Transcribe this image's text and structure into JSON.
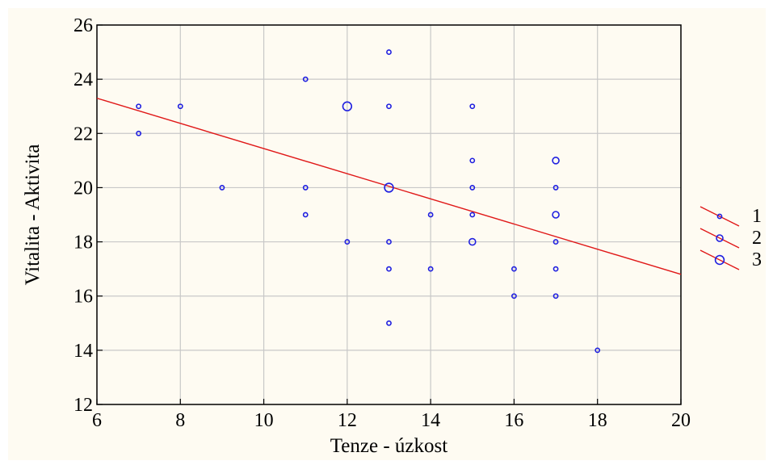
{
  "chart_data": {
    "type": "scatter",
    "title": "",
    "xlabel": "Tenze - úzkost",
    "ylabel": "Vitalita - Aktivita",
    "xlim": [
      6,
      20
    ],
    "ylim": [
      12,
      26
    ],
    "xticks": [
      6,
      8,
      10,
      12,
      14,
      16,
      18,
      20
    ],
    "yticks": [
      12,
      14,
      16,
      18,
      20,
      22,
      24,
      26
    ],
    "grid": true,
    "legend_position": "right",
    "legend": [
      {
        "label": "1",
        "count": 1
      },
      {
        "label": "2",
        "count": 2
      },
      {
        "label": "3",
        "count": 3
      }
    ],
    "points": [
      {
        "x": 7,
        "y": 23,
        "count": 1
      },
      {
        "x": 7,
        "y": 22,
        "count": 1
      },
      {
        "x": 8,
        "y": 23,
        "count": 1
      },
      {
        "x": 9,
        "y": 20,
        "count": 1
      },
      {
        "x": 11,
        "y": 24,
        "count": 1
      },
      {
        "x": 11,
        "y": 20,
        "count": 1
      },
      {
        "x": 11,
        "y": 19,
        "count": 1
      },
      {
        "x": 12,
        "y": 23,
        "count": 3
      },
      {
        "x": 12,
        "y": 18,
        "count": 1
      },
      {
        "x": 13,
        "y": 25,
        "count": 1
      },
      {
        "x": 13,
        "y": 23,
        "count": 1
      },
      {
        "x": 13,
        "y": 20,
        "count": 3
      },
      {
        "x": 13,
        "y": 18,
        "count": 1
      },
      {
        "x": 13,
        "y": 17,
        "count": 1
      },
      {
        "x": 13,
        "y": 15,
        "count": 1
      },
      {
        "x": 14,
        "y": 19,
        "count": 1
      },
      {
        "x": 14,
        "y": 17,
        "count": 1
      },
      {
        "x": 15,
        "y": 23,
        "count": 1
      },
      {
        "x": 15,
        "y": 21,
        "count": 1
      },
      {
        "x": 15,
        "y": 20,
        "count": 1
      },
      {
        "x": 15,
        "y": 19,
        "count": 1
      },
      {
        "x": 15,
        "y": 18,
        "count": 2
      },
      {
        "x": 16,
        "y": 17,
        "count": 1
      },
      {
        "x": 16,
        "y": 16,
        "count": 1
      },
      {
        "x": 17,
        "y": 21,
        "count": 2
      },
      {
        "x": 17,
        "y": 20,
        "count": 1
      },
      {
        "x": 17,
        "y": 19,
        "count": 2
      },
      {
        "x": 17,
        "y": 18,
        "count": 1
      },
      {
        "x": 17,
        "y": 17,
        "count": 1
      },
      {
        "x": 17,
        "y": 16,
        "count": 1
      },
      {
        "x": 18,
        "y": 14,
        "count": 1
      }
    ],
    "regression_line": {
      "x": [
        6,
        20
      ],
      "y": [
        23.3,
        16.8
      ]
    },
    "colors": {
      "points": "#1F1FE0",
      "line": "#E01818",
      "grid": "#C8C8C8",
      "axes": "#000000"
    }
  }
}
